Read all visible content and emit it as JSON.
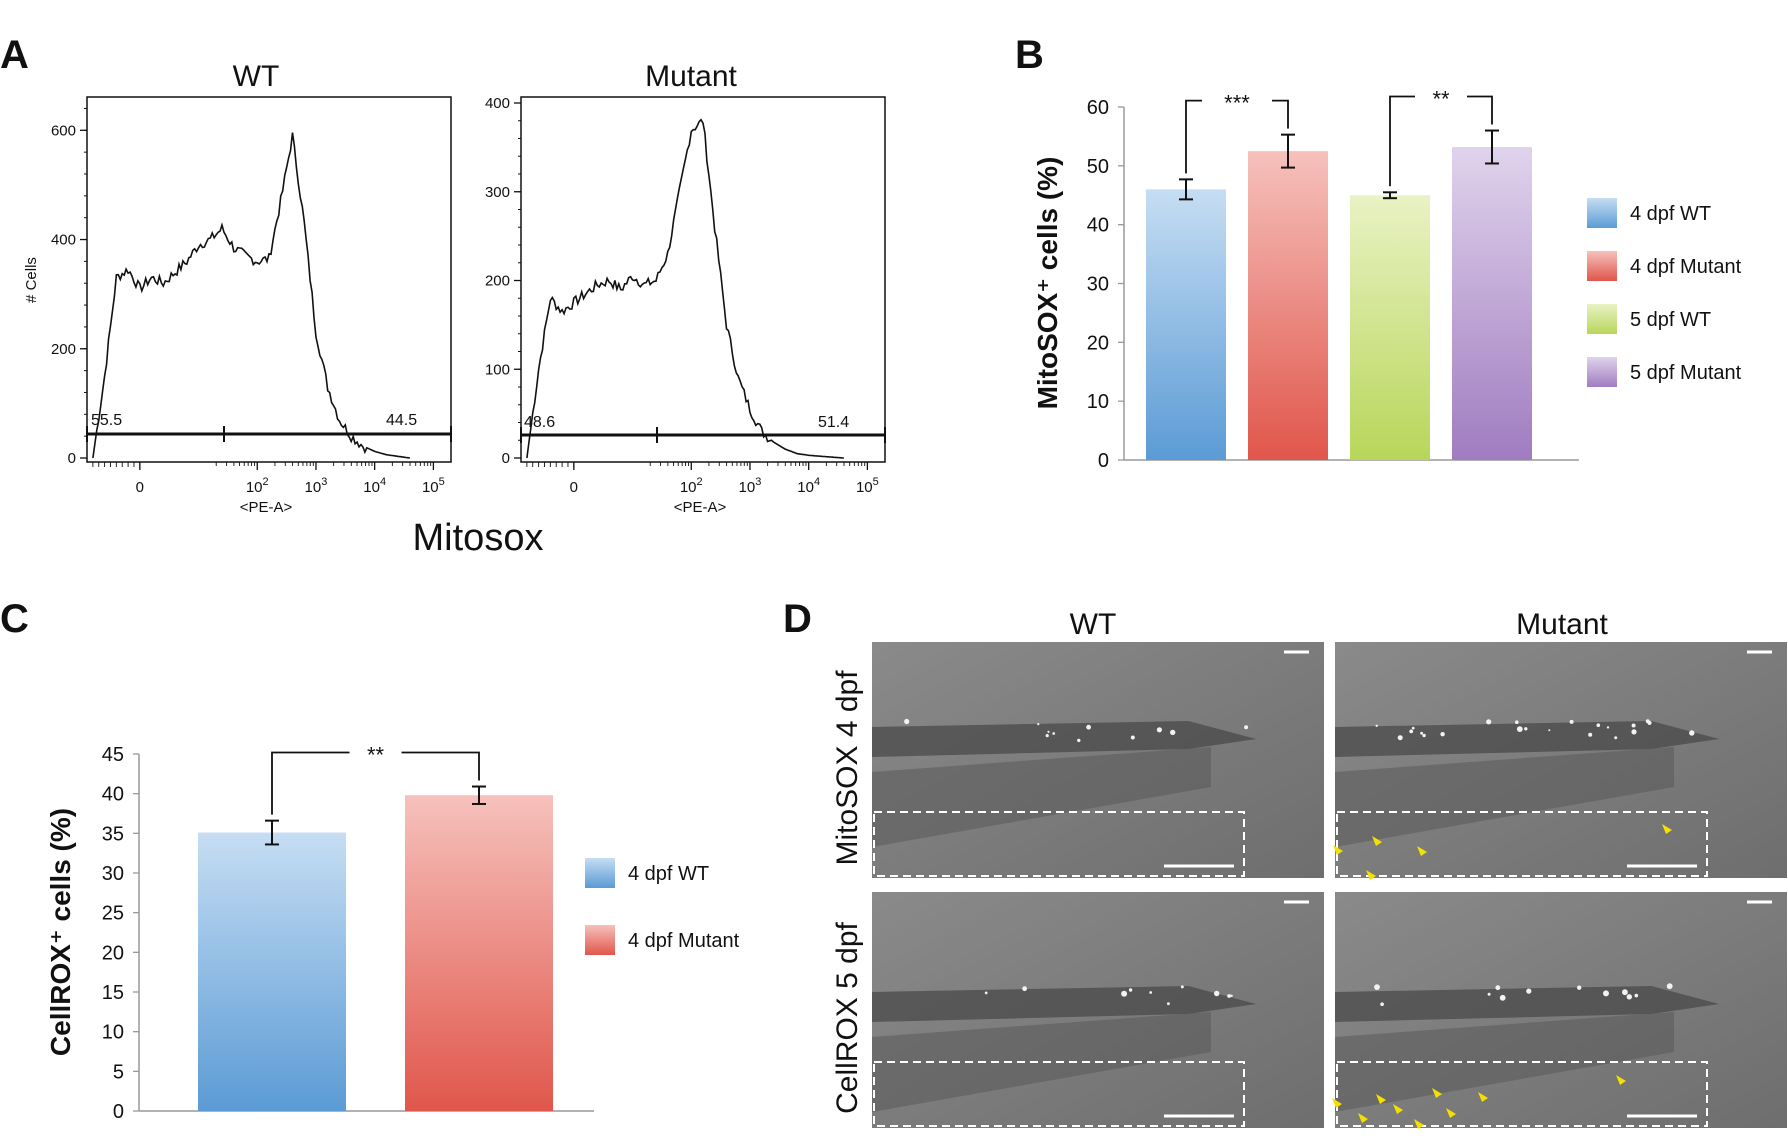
{
  "panels": {
    "A": {
      "letter": "A",
      "wt_title": "WT",
      "mut_title": "Mutant",
      "ylabel": "# Cells",
      "xlabel": "<PE-A>",
      "shared_xlabel": "Mitosox",
      "wt_yticks": [
        "0",
        "200",
        "400",
        "600"
      ],
      "mut_yticks": [
        "0",
        "100",
        "200",
        "300",
        "400"
      ],
      "wt_xticks": [
        "0",
        "10^2",
        "10^3",
        "10^4",
        "10^5"
      ],
      "mut_xticks": [
        "0",
        "10^2",
        "10^3",
        "10^4",
        "10^5"
      ],
      "wt_gate_left": "55.5",
      "wt_gate_right": "44.5",
      "mut_gate_left": "48.6",
      "mut_gate_right": "51.4"
    },
    "B": {
      "letter": "B"
    },
    "C": {
      "letter": "C"
    },
    "D": {
      "letter": "D",
      "col_wt": "WT",
      "col_mut": "Mutant",
      "row1": "MitoSOX 4 dpf",
      "row2": "CellROX 5 dpf"
    }
  },
  "chart_data": [
    {
      "panel": "A-WT",
      "type": "line",
      "title": "WT",
      "xlabel": "<PE-A>",
      "ylabel": "# Cells",
      "ylim": [
        0,
        650
      ],
      "x": [
        -0.8,
        -0.6,
        -0.4,
        -0.2,
        0.0,
        0.2,
        0.4,
        0.6,
        0.8,
        1.0,
        1.2,
        1.4,
        1.6,
        1.8,
        2.0,
        2.2,
        2.4,
        2.6,
        2.8,
        3.0,
        3.2,
        3.4,
        3.6,
        3.8,
        4.0,
        4.2,
        4.4,
        4.6
      ],
      "y": [
        0,
        150,
        330,
        345,
        310,
        330,
        320,
        340,
        360,
        390,
        400,
        420,
        385,
        370,
        360,
        365,
        470,
        590,
        430,
        230,
        130,
        70,
        40,
        22,
        12,
        6,
        3,
        0
      ],
      "gates": [
        {
          "label": "55.5"
        },
        {
          "label": "44.5"
        }
      ]
    },
    {
      "panel": "A-Mutant",
      "type": "line",
      "title": "Mutant",
      "xlabel": "<PE-A>",
      "ylim": [
        0,
        400
      ],
      "x": [
        -0.8,
        -0.6,
        -0.4,
        -0.2,
        0.0,
        0.2,
        0.4,
        0.6,
        0.8,
        1.0,
        1.2,
        1.4,
        1.6,
        1.8,
        2.0,
        2.2,
        2.4,
        2.6,
        2.8,
        3.0,
        3.2,
        3.4,
        3.6,
        3.8,
        4.0,
        4.2,
        4.4,
        4.6
      ],
      "y": [
        0,
        100,
        180,
        165,
        175,
        185,
        195,
        200,
        190,
        205,
        195,
        200,
        230,
        300,
        370,
        380,
        260,
        150,
        90,
        55,
        30,
        18,
        10,
        5,
        3,
        2,
        1,
        0
      ],
      "gates": [
        {
          "label": "48.6"
        },
        {
          "label": "51.4"
        }
      ]
    },
    {
      "panel": "B",
      "type": "bar",
      "ylabel": "MitoSOX⁺ cells (%)",
      "ylim": [
        0,
        60
      ],
      "yticks": [
        0,
        10,
        20,
        30,
        40,
        50,
        60
      ],
      "categories": [
        "4 dpf WT",
        "4 dpf Mutant",
        "5 dpf WT",
        "5 dpf Mutant"
      ],
      "values": [
        46,
        52.5,
        45,
        53.2
      ],
      "errors": [
        1.7,
        2.8,
        0.5,
        2.8
      ],
      "colors": [
        "#5b9bd5",
        "#e0564b",
        "#b8d65a",
        "#a07cc0"
      ],
      "colors_light": [
        "#c6ddf3",
        "#f6c1bc",
        "#e9f2c4",
        "#e0d3ec"
      ],
      "significance": [
        {
          "from": 0,
          "to": 1,
          "label": "***"
        },
        {
          "from": 2,
          "to": 3,
          "label": "**"
        }
      ],
      "legend": [
        "4 dpf WT",
        "4 dpf Mutant",
        "5 dpf WT",
        "5 dpf Mutant"
      ],
      "legend_position": "right"
    },
    {
      "panel": "C",
      "type": "bar",
      "ylabel": "CellROX⁺ cells (%)",
      "ylim": [
        0,
        45
      ],
      "yticks": [
        0,
        5,
        10,
        15,
        20,
        25,
        30,
        35,
        40,
        45
      ],
      "categories": [
        "4 dpf WT",
        "4 dpf Mutant"
      ],
      "values": [
        35.1,
        39.8
      ],
      "errors": [
        1.5,
        1.1
      ],
      "colors": [
        "#5b9bd5",
        "#e0564b"
      ],
      "colors_light": [
        "#c6ddf3",
        "#f6c1bc"
      ],
      "significance": [
        {
          "from": 0,
          "to": 1,
          "label": "**"
        }
      ],
      "legend": [
        "4 dpf WT",
        "4 dpf Mutant"
      ],
      "legend_position": "right"
    }
  ]
}
